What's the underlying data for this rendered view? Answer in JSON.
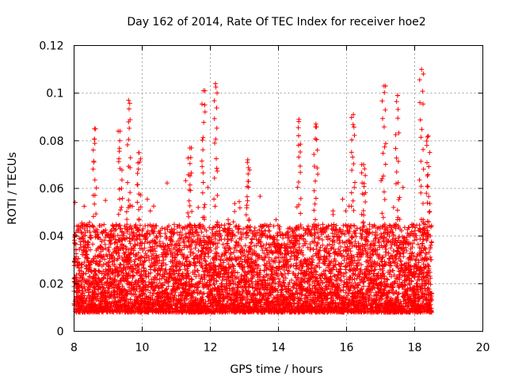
{
  "chart_data": {
    "type": "scatter",
    "title": "Day 162 of 2014, Rate Of TEC Index for receiver hoe2",
    "xlabel": "GPS time / hours",
    "ylabel": "ROTI / TECUs",
    "xlim": [
      8,
      20
    ],
    "ylim": [
      0,
      0.12
    ],
    "xticks": [
      "8",
      "10",
      "12",
      "14",
      "16",
      "18",
      "20"
    ],
    "yticks": [
      "0",
      "0.02",
      "0.04",
      "0.06",
      "0.08",
      "0.1",
      "0.12"
    ],
    "grid": true,
    "marker": "plus",
    "series": [
      {
        "name": "hoe2 ROTI",
        "color": "#ff0000",
        "x_range": [
          8.0,
          18.5
        ],
        "sample_interval_hours": 0.0083,
        "baseline_min": 0.008,
        "typical_upper": 0.045,
        "peaks": [
          {
            "x": 8.6,
            "y": 0.085
          },
          {
            "x": 9.35,
            "y": 0.084
          },
          {
            "x": 9.6,
            "y": 0.097
          },
          {
            "x": 9.9,
            "y": 0.075
          },
          {
            "x": 11.4,
            "y": 0.077
          },
          {
            "x": 11.8,
            "y": 0.101
          },
          {
            "x": 12.15,
            "y": 0.104
          },
          {
            "x": 13.1,
            "y": 0.072
          },
          {
            "x": 14.6,
            "y": 0.089
          },
          {
            "x": 15.1,
            "y": 0.087
          },
          {
            "x": 16.2,
            "y": 0.091
          },
          {
            "x": 16.5,
            "y": 0.07
          },
          {
            "x": 17.1,
            "y": 0.103
          },
          {
            "x": 17.5,
            "y": 0.099
          },
          {
            "x": 18.2,
            "y": 0.11
          },
          {
            "x": 18.4,
            "y": 0.082
          }
        ]
      }
    ]
  }
}
